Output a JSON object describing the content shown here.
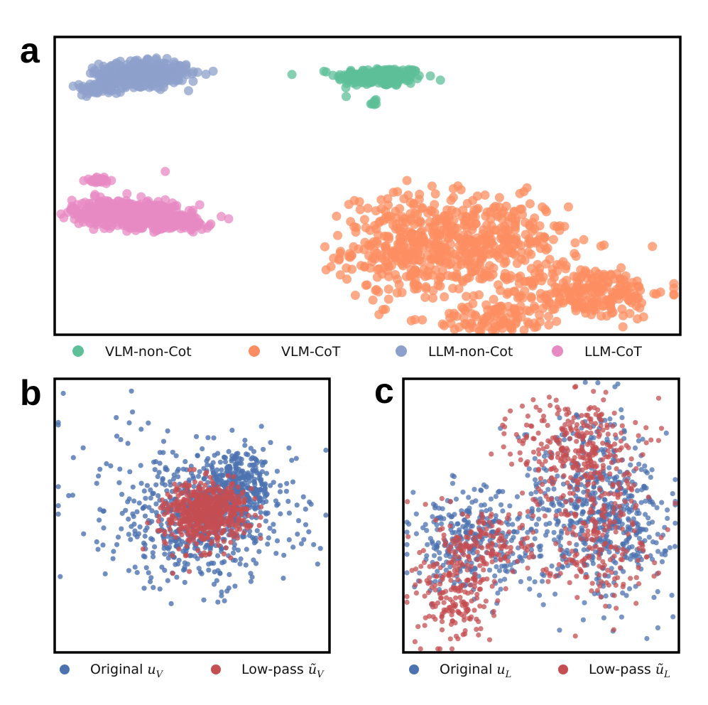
{
  "panels": {
    "a": {
      "letter": "a"
    },
    "b": {
      "letter": "b"
    },
    "c": {
      "letter": "c"
    }
  },
  "colors": {
    "vlm_non_cot": "#5ebf98",
    "vlm_cot": "#fc8d62",
    "llm_non_cot": "#8da0cb",
    "llm_cot": "#e78ac3",
    "original": "#4c72b0",
    "low_pass": "#c44e52"
  },
  "legend_a": [
    {
      "label": "VLM-non-Cot",
      "color": "#5ebf98"
    },
    {
      "label": "VLM-CoT",
      "color": "#fc8d62"
    },
    {
      "label": "LLM-non-Cot",
      "color": "#8da0cb"
    },
    {
      "label": "LLM-CoT",
      "color": "#e78ac3"
    }
  ],
  "legend_b": [
    {
      "text": "Original ",
      "math": "u",
      "sub": "V",
      "tilde": false,
      "color": "#4c72b0"
    },
    {
      "text": "Low-pass ",
      "math": "ũ",
      "sub": "V",
      "tilde": true,
      "color": "#c44e52"
    }
  ],
  "legend_c": [
    {
      "text": "Original ",
      "math": "u",
      "sub": "L",
      "tilde": false,
      "color": "#4c72b0"
    },
    {
      "text": "Low-pass ",
      "math": "ũ",
      "sub": "L",
      "tilde": true,
      "color": "#c44e52"
    }
  ],
  "chart_data": [
    {
      "type": "scatter",
      "panel": "a",
      "title": "",
      "xlabel": "",
      "ylabel": "",
      "xlim": [
        0,
        100
      ],
      "ylim": [
        0,
        100
      ],
      "grid": false,
      "legend_position": "bottom",
      "series": [
        {
          "name": "VLM-non-Cot",
          "clusters": [
            {
              "cx": 52,
              "cy": 87,
              "sx": 3.5,
              "sy": 1.6,
              "n": 220
            },
            {
              "cx": 51,
              "cy": 78,
              "sx": 0.4,
              "sy": 0.5,
              "n": 8
            }
          ]
        },
        {
          "name": "VLM-CoT",
          "clusters": [
            {
              "cx": 57,
              "cy": 29,
              "sx": 5.5,
              "sy": 9,
              "n": 330
            },
            {
              "cx": 70,
              "cy": 31,
              "sx": 6,
              "sy": 7.5,
              "n": 260
            },
            {
              "cx": 85,
              "cy": 14,
              "sx": 6.5,
              "sy": 4.5,
              "n": 240
            },
            {
              "cx": 71,
              "cy": 5,
              "sx": 5,
              "sy": 2.5,
              "n": 90
            }
          ]
        },
        {
          "name": "LLM-non-Cot",
          "clusters": [
            {
              "cx": 14,
              "cy": 88,
              "sx": 3.5,
              "sy": 2,
              "n": 420
            },
            {
              "cx": 7,
              "cy": 83,
              "sx": 1.8,
              "sy": 1,
              "n": 55
            }
          ]
        },
        {
          "name": "LLM-CoT",
          "clusters": [
            {
              "cx": 11,
              "cy": 41,
              "sx": 4.2,
              "sy": 2.2,
              "n": 380
            },
            {
              "cx": 18,
              "cy": 38,
              "sx": 3.5,
              "sy": 1.4,
              "n": 180
            },
            {
              "cx": 7,
              "cy": 52,
              "sx": 1.1,
              "sy": 0.6,
              "n": 30
            },
            {
              "cx": 17.5,
              "cy": 55,
              "sx": 0.1,
              "sy": 0.1,
              "n": 1
            }
          ]
        }
      ]
    },
    {
      "type": "scatter",
      "panel": "b",
      "title": "",
      "xlabel": "",
      "ylabel": "",
      "xlim": [
        0,
        100
      ],
      "ylim": [
        0,
        100
      ],
      "grid": false,
      "legend_position": "bottom",
      "series": [
        {
          "name": "Original u_V",
          "clusters": [
            {
              "cx": 53,
              "cy": 48,
              "sx": 17,
              "sy": 12,
              "n": 560
            },
            {
              "cx": 67,
              "cy": 60,
              "sx": 6.5,
              "sy": 6,
              "n": 300
            },
            {
              "cx": 30,
              "cy": 72,
              "sx": 14,
              "sy": 10,
              "n": 40
            }
          ]
        },
        {
          "name": "Low-pass ũ_V",
          "clusters": [
            {
              "cx": 57,
              "cy": 52,
              "sx": 7,
              "sy": 5,
              "n": 450
            },
            {
              "cx": 50,
              "cy": 48,
              "sx": 5,
              "sy": 7,
              "n": 150
            }
          ]
        }
      ]
    },
    {
      "type": "scatter",
      "panel": "c",
      "title": "",
      "xlabel": "",
      "ylabel": "",
      "xlim": [
        0,
        100
      ],
      "ylim": [
        0,
        100
      ],
      "grid": false,
      "legend_position": "bottom",
      "series": [
        {
          "name": "Original u_L",
          "clusters": [
            {
              "cx": 25,
              "cy": 40,
              "sx": 12,
              "sy": 9,
              "n": 300
            },
            {
              "cx": 68,
              "cy": 55,
              "sx": 13,
              "sy": 17,
              "n": 430
            },
            {
              "cx": 80,
              "cy": 45,
              "sx": 9,
              "sy": 9,
              "n": 150
            }
          ]
        },
        {
          "name": "Low-pass ũ_L",
          "clusters": [
            {
              "cx": 18,
              "cy": 20,
              "sx": 7,
              "sy": 9,
              "n": 180
            },
            {
              "cx": 30,
              "cy": 40,
              "sx": 9,
              "sy": 7,
              "n": 150
            },
            {
              "cx": 63,
              "cy": 75,
              "sx": 11,
              "sy": 10,
              "n": 280
            },
            {
              "cx": 70,
              "cy": 45,
              "sx": 10,
              "sy": 13,
              "n": 220
            }
          ]
        }
      ]
    }
  ]
}
